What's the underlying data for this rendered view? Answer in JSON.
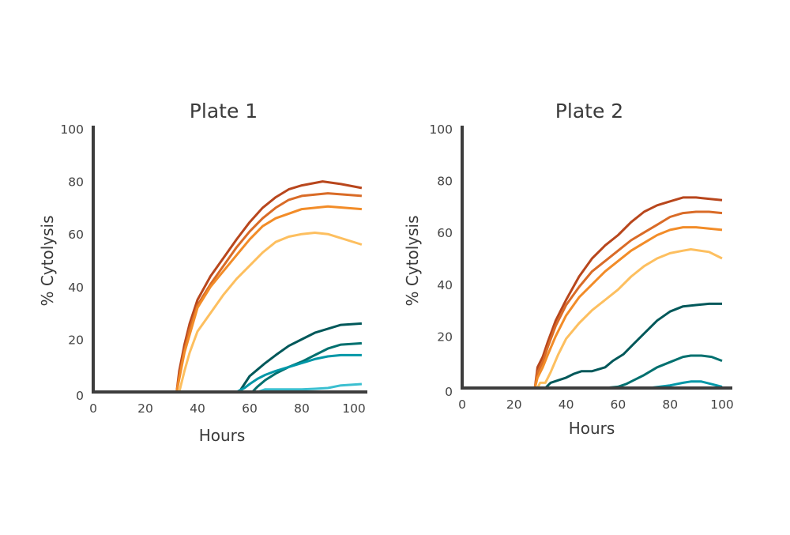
{
  "chart_data": [
    {
      "type": "line",
      "title": "Plate 1",
      "xlabel": "Hours",
      "ylabel": "% Cytolysis",
      "xlim": [
        0,
        100
      ],
      "ylim": [
        0,
        100
      ],
      "xticks": [
        "0",
        "20",
        "40",
        "60",
        "80",
        "100"
      ],
      "yticks": [
        "0",
        "20",
        "40",
        "60",
        "80",
        "100"
      ],
      "grid": false,
      "series": [
        {
          "color": "#b8461c",
          "points": [
            [
              0,
              0
            ],
            [
              32,
              0
            ],
            [
              33,
              8
            ],
            [
              35,
              18
            ],
            [
              37,
              26
            ],
            [
              40,
              35
            ],
            [
              45,
              44
            ],
            [
              50,
              51
            ],
            [
              55,
              58
            ],
            [
              60,
              64.5
            ],
            [
              65,
              70
            ],
            [
              70,
              74
            ],
            [
              75,
              77
            ],
            [
              80,
              78.5
            ],
            [
              88,
              80
            ],
            [
              95,
              79
            ],
            [
              103,
              77.5
            ]
          ]
        },
        {
          "color": "#d96b27",
          "points": [
            [
              0,
              0
            ],
            [
              32,
              0
            ],
            [
              33,
              6
            ],
            [
              35,
              16
            ],
            [
              37,
              24
            ],
            [
              40,
              33
            ],
            [
              45,
              41
            ],
            [
              50,
              48
            ],
            [
              55,
              55
            ],
            [
              60,
              61
            ],
            [
              65,
              66
            ],
            [
              70,
              70
            ],
            [
              75,
              73
            ],
            [
              80,
              74.5
            ],
            [
              90,
              75.5
            ],
            [
              103,
              74.5
            ]
          ]
        },
        {
          "color": "#f28c28",
          "points": [
            [
              0,
              0
            ],
            [
              32,
              0
            ],
            [
              33,
              5
            ],
            [
              35,
              15
            ],
            [
              40,
              32
            ],
            [
              45,
              40
            ],
            [
              50,
              46
            ],
            [
              55,
              52
            ],
            [
              60,
              58
            ],
            [
              65,
              63
            ],
            [
              70,
              66
            ],
            [
              80,
              69.5
            ],
            [
              90,
              70.5
            ],
            [
              103,
              69.5
            ]
          ]
        },
        {
          "color": "#fdbf5f",
          "points": [
            [
              0,
              0
            ],
            [
              33,
              0
            ],
            [
              35,
              8
            ],
            [
              37,
              15
            ],
            [
              40,
              23
            ],
            [
              45,
              30
            ],
            [
              50,
              37
            ],
            [
              55,
              43
            ],
            [
              60,
              48
            ],
            [
              65,
              53
            ],
            [
              70,
              57
            ],
            [
              75,
              59
            ],
            [
              80,
              60
            ],
            [
              85,
              60.5
            ],
            [
              90,
              60
            ],
            [
              103,
              56
            ]
          ]
        },
        {
          "color": "#00585a",
          "points": [
            [
              0,
              0
            ],
            [
              56,
              0
            ],
            [
              58,
              3
            ],
            [
              60,
              6
            ],
            [
              63,
              8.5
            ],
            [
              66,
              11
            ],
            [
              70,
              14
            ],
            [
              75,
              17.5
            ],
            [
              80,
              20
            ],
            [
              85,
              22.5
            ],
            [
              90,
              24
            ],
            [
              95,
              25.5
            ],
            [
              103,
              26
            ]
          ]
        },
        {
          "color": "#00706f",
          "points": [
            [
              0,
              0
            ],
            [
              61,
              0
            ],
            [
              63,
              2
            ],
            [
              66,
              4.5
            ],
            [
              70,
              7
            ],
            [
              75,
              9.5
            ],
            [
              80,
              11.5
            ],
            [
              85,
              14
            ],
            [
              90,
              16.5
            ],
            [
              95,
              18
            ],
            [
              103,
              18.5
            ]
          ]
        },
        {
          "color": "#0097a7",
          "points": [
            [
              0,
              0
            ],
            [
              55,
              0
            ],
            [
              58,
              1.5
            ],
            [
              60,
              3
            ],
            [
              63,
              5
            ],
            [
              66,
              6.5
            ],
            [
              70,
              8
            ],
            [
              75,
              9.5
            ],
            [
              80,
              11
            ],
            [
              85,
              12.5
            ],
            [
              90,
              13.5
            ],
            [
              95,
              14
            ],
            [
              103,
              14
            ]
          ]
        },
        {
          "color": "#3bbfd0",
          "points": [
            [
              0,
              0
            ],
            [
              63,
              0
            ],
            [
              66,
              1
            ],
            [
              70,
              1
            ],
            [
              80,
              1
            ],
            [
              85,
              1.2
            ],
            [
              90,
              1.5
            ],
            [
              95,
              2.5
            ],
            [
              103,
              3
            ]
          ]
        }
      ]
    },
    {
      "type": "line",
      "title": "Plate 2",
      "xlabel": "Hours",
      "ylabel": "% Cytolysis",
      "xlim": [
        0,
        100
      ],
      "ylim": [
        0,
        100
      ],
      "xticks": [
        "0",
        "20",
        "40",
        "60",
        "80",
        "100"
      ],
      "yticks": [
        "0",
        "20",
        "40",
        "60",
        "80",
        "100"
      ],
      "grid": false,
      "series": [
        {
          "color": "#b8461c",
          "points": [
            [
              0,
              0
            ],
            [
              28,
              0
            ],
            [
              29,
              8
            ],
            [
              31,
              12
            ],
            [
              33,
              18
            ],
            [
              36,
              26
            ],
            [
              40,
              34
            ],
            [
              45,
              43
            ],
            [
              50,
              50
            ],
            [
              55,
              55
            ],
            [
              60,
              59
            ],
            [
              65,
              64
            ],
            [
              70,
              68
            ],
            [
              75,
              70.5
            ],
            [
              80,
              72
            ],
            [
              85,
              73.5
            ],
            [
              90,
              73.5
            ],
            [
              95,
              73
            ],
            [
              100,
              72.5
            ]
          ]
        },
        {
          "color": "#d96b27",
          "points": [
            [
              0,
              0
            ],
            [
              28,
              0
            ],
            [
              29,
              6
            ],
            [
              31,
              10
            ],
            [
              33,
              16
            ],
            [
              36,
              24
            ],
            [
              40,
              32
            ],
            [
              45,
              39
            ],
            [
              50,
              45
            ],
            [
              55,
              49
            ],
            [
              60,
              53
            ],
            [
              65,
              57
            ],
            [
              70,
              60
            ],
            [
              75,
              63
            ],
            [
              80,
              66
            ],
            [
              85,
              67.5
            ],
            [
              90,
              68
            ],
            [
              95,
              68
            ],
            [
              100,
              67.5
            ]
          ]
        },
        {
          "color": "#f28c28",
          "points": [
            [
              0,
              0
            ],
            [
              28,
              0
            ],
            [
              29,
              4
            ],
            [
              31,
              8
            ],
            [
              33,
              13
            ],
            [
              36,
              20
            ],
            [
              40,
              28
            ],
            [
              45,
              35
            ],
            [
              50,
              40
            ],
            [
              55,
              45
            ],
            [
              60,
              49
            ],
            [
              65,
              53
            ],
            [
              70,
              56
            ],
            [
              75,
              59
            ],
            [
              80,
              61
            ],
            [
              85,
              62
            ],
            [
              90,
              62
            ],
            [
              95,
              61.5
            ],
            [
              100,
              61
            ]
          ]
        },
        {
          "color": "#fdbf5f",
          "points": [
            [
              0,
              0
            ],
            [
              29,
              0
            ],
            [
              30,
              2
            ],
            [
              32,
              2
            ],
            [
              34,
              6
            ],
            [
              37,
              13
            ],
            [
              40,
              19
            ],
            [
              45,
              25
            ],
            [
              50,
              30
            ],
            [
              55,
              34
            ],
            [
              60,
              38
            ],
            [
              65,
              43
            ],
            [
              70,
              47
            ],
            [
              75,
              50
            ],
            [
              80,
              52
            ],
            [
              85,
              53
            ],
            [
              88,
              53.5
            ],
            [
              95,
              52.5
            ],
            [
              100,
              50
            ]
          ]
        },
        {
          "color": "#00585a",
          "points": [
            [
              0,
              0
            ],
            [
              32,
              0
            ],
            [
              34,
              2
            ],
            [
              37,
              3
            ],
            [
              40,
              4
            ],
            [
              43,
              5.5
            ],
            [
              46,
              6.5
            ],
            [
              50,
              6.5
            ],
            [
              55,
              8
            ],
            [
              58,
              10.5
            ],
            [
              62,
              13
            ],
            [
              66,
              17
            ],
            [
              70,
              21
            ],
            [
              75,
              26
            ],
            [
              80,
              29.5
            ],
            [
              85,
              31.5
            ],
            [
              90,
              32
            ],
            [
              95,
              32.5
            ],
            [
              100,
              32.5
            ]
          ]
        },
        {
          "color": "#00706f",
          "points": [
            [
              0,
              0
            ],
            [
              55,
              0
            ],
            [
              60,
              0.5
            ],
            [
              63,
              1.5
            ],
            [
              66,
              3
            ],
            [
              70,
              5
            ],
            [
              75,
              8
            ],
            [
              80,
              10
            ],
            [
              85,
              12
            ],
            [
              88,
              12.5
            ],
            [
              92,
              12.5
            ],
            [
              96,
              12
            ],
            [
              100,
              10.5
            ]
          ]
        },
        {
          "color": "#0097a7",
          "points": [
            [
              0,
              0
            ],
            [
              72,
              0
            ],
            [
              76,
              0.5
            ],
            [
              80,
              1
            ],
            [
              85,
              2
            ],
            [
              88,
              2.5
            ],
            [
              92,
              2.5
            ],
            [
              96,
              1.5
            ],
            [
              100,
              0.5
            ]
          ]
        }
      ]
    }
  ]
}
